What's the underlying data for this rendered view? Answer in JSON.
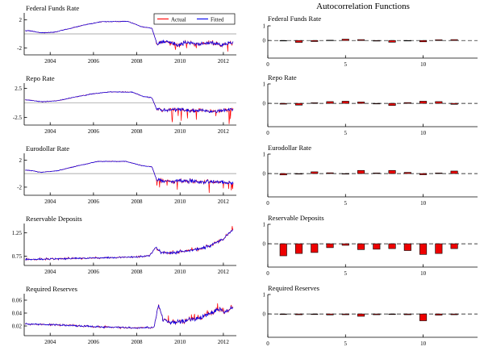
{
  "figure": {
    "right_title": "Autocorrelation Functions",
    "colors": {
      "actual": "#ff0000",
      "fitted": "#0000ee",
      "bar_fill": "#ee0000",
      "bar_edge": "#000000",
      "zero_line": "#909090"
    }
  },
  "chart_data": [
    {
      "id": "ts_ffr",
      "type": "line",
      "title": "Federal Funds Rate",
      "xlim": [
        2002.8,
        2012.6
      ],
      "xticks": [
        2004,
        2006,
        2008,
        2010,
        2012
      ],
      "ylim": [
        -3,
        3
      ],
      "yticks": [
        2,
        -2
      ],
      "zero_line": true,
      "legend": [
        {
          "label": "Actual",
          "color": "#ff0000"
        },
        {
          "label": "Fitted",
          "color": "#0000ee"
        }
      ],
      "series": [
        {
          "name": "Actual",
          "color": "#ff0000"
        },
        {
          "name": "Fitted",
          "color": "#0000ee"
        }
      ],
      "anchors": [
        [
          2003,
          0.45
        ],
        [
          2003.6,
          0.15
        ],
        [
          2004.2,
          0.25
        ],
        [
          2004.8,
          0.7
        ],
        [
          2005.6,
          1.3
        ],
        [
          2006.4,
          1.75
        ],
        [
          2007.6,
          1.78
        ],
        [
          2008.2,
          1.05
        ],
        [
          2008.7,
          0.8
        ],
        [
          2008.92,
          -1.3
        ],
        [
          2009.4,
          -1.1
        ],
        [
          2009.9,
          -1.5
        ],
        [
          2010.4,
          -1.2
        ],
        [
          2010.9,
          -1.5
        ],
        [
          2011.4,
          -1.3
        ],
        [
          2011.9,
          -1.6
        ],
        [
          2012.45,
          -1.2
        ]
      ],
      "noise": {
        "pre": 0.04,
        "post": 0.28,
        "switch": 2008.9
      },
      "spikes": {
        "prob": 0.04,
        "mag": 1.0,
        "dir": -1
      }
    },
    {
      "id": "ts_repo",
      "type": "line",
      "title": "Repo Rate",
      "xlim": [
        2002.8,
        2012.6
      ],
      "xticks": [
        2004,
        2006,
        2008,
        2010,
        2012
      ],
      "ylim": [
        -3.8,
        3.4
      ],
      "yticks": [
        2.5,
        -2.5
      ],
      "zero_line": true,
      "legend": null,
      "series": [
        {
          "name": "Actual",
          "color": "#ff0000"
        },
        {
          "name": "Fitted",
          "color": "#0000ee"
        }
      ],
      "anchors": [
        [
          2003,
          0.5
        ],
        [
          2003.6,
          0.2
        ],
        [
          2004.3,
          0.35
        ],
        [
          2005,
          0.9
        ],
        [
          2006,
          1.6
        ],
        [
          2006.8,
          1.9
        ],
        [
          2007.8,
          1.85
        ],
        [
          2008.3,
          1.1
        ],
        [
          2008.7,
          0.9
        ],
        [
          2008.92,
          -1.1
        ],
        [
          2009.4,
          -1.3
        ],
        [
          2010,
          -1.1
        ],
        [
          2010.5,
          -1.4
        ],
        [
          2011,
          -1.2
        ],
        [
          2011.5,
          -1.5
        ],
        [
          2012,
          -1.2
        ],
        [
          2012.45,
          -1.0
        ]
      ],
      "noise": {
        "pre": 0.05,
        "post": 0.32,
        "switch": 2008.9
      },
      "spikes": {
        "prob": 0.06,
        "mag": 2.2,
        "dir": -1
      }
    },
    {
      "id": "ts_euro",
      "type": "line",
      "title": "Eurodollar Rate",
      "xlim": [
        2002.8,
        2012.6
      ],
      "xticks": [
        2004,
        2006,
        2008,
        2010,
        2012
      ],
      "ylim": [
        -3.2,
        3
      ],
      "yticks": [
        2,
        -2
      ],
      "zero_line": true,
      "legend": null,
      "series": [
        {
          "name": "Actual",
          "color": "#ff0000"
        },
        {
          "name": "Fitted",
          "color": "#0000ee"
        }
      ],
      "anchors": [
        [
          2003,
          0.5
        ],
        [
          2003.6,
          0.2
        ],
        [
          2004.3,
          0.4
        ],
        [
          2005.2,
          1.1
        ],
        [
          2006.2,
          1.8
        ],
        [
          2007.5,
          1.8
        ],
        [
          2008.2,
          1.2
        ],
        [
          2008.7,
          1.0
        ],
        [
          2008.92,
          -0.9
        ],
        [
          2009.5,
          -1.2
        ],
        [
          2010.2,
          -1.0
        ],
        [
          2011,
          -1.3
        ],
        [
          2011.6,
          -1.1
        ],
        [
          2012.45,
          -1.4
        ]
      ],
      "noise": {
        "pre": 0.04,
        "post": 0.28,
        "switch": 2008.9
      },
      "spikes": {
        "prob": 0.05,
        "mag": 1.6,
        "dir": -1
      }
    },
    {
      "id": "ts_dep",
      "type": "line",
      "title": "Reservable Deposits",
      "xlim": [
        2002.8,
        2012.6
      ],
      "xticks": [
        2004,
        2006,
        2008,
        2010,
        2012
      ],
      "ylim": [
        0.55,
        1.45
      ],
      "yticks": [
        1.25,
        0.75
      ],
      "zero_line": false,
      "legend": null,
      "series": [
        {
          "name": "Actual",
          "color": "#ff0000"
        },
        {
          "name": "Fitted",
          "color": "#0000ee"
        }
      ],
      "anchors": [
        [
          2003,
          0.68
        ],
        [
          2004,
          0.69
        ],
        [
          2005,
          0.7
        ],
        [
          2006,
          0.71
        ],
        [
          2007,
          0.72
        ],
        [
          2008,
          0.73
        ],
        [
          2008.6,
          0.76
        ],
        [
          2008.88,
          0.95
        ],
        [
          2009.1,
          0.83
        ],
        [
          2009.6,
          0.82
        ],
        [
          2010,
          0.85
        ],
        [
          2010.6,
          0.88
        ],
        [
          2011,
          0.92
        ],
        [
          2011.5,
          1.0
        ],
        [
          2012,
          1.12
        ],
        [
          2012.45,
          1.32
        ]
      ],
      "noise": {
        "pre": 0.016,
        "post": 0.03,
        "switch": 2008.85
      },
      "spikes": {
        "prob": 0.03,
        "mag": 0.12,
        "dir": 1
      }
    },
    {
      "id": "ts_req",
      "type": "line",
      "title": "Required Reserves",
      "xlim": [
        2002.8,
        2012.6
      ],
      "xticks": [
        2004,
        2006,
        2008,
        2010,
        2012
      ],
      "ylim": [
        0.005,
        0.07
      ],
      "yticks": [
        0.06,
        0.04,
        0.02
      ],
      "zero_line": false,
      "legend": null,
      "series": [
        {
          "name": "Actual",
          "color": "#ff0000"
        },
        {
          "name": "Fitted",
          "color": "#0000ee"
        }
      ],
      "anchors": [
        [
          2003,
          0.023
        ],
        [
          2004,
          0.022
        ],
        [
          2005,
          0.021
        ],
        [
          2006,
          0.019
        ],
        [
          2007,
          0.018
        ],
        [
          2008,
          0.017
        ],
        [
          2008.8,
          0.018
        ],
        [
          2009,
          0.053
        ],
        [
          2009.2,
          0.03
        ],
        [
          2009.6,
          0.026
        ],
        [
          2010,
          0.027
        ],
        [
          2010.5,
          0.03
        ],
        [
          2011,
          0.033
        ],
        [
          2011.4,
          0.04
        ],
        [
          2011.8,
          0.046
        ],
        [
          2012.1,
          0.042
        ],
        [
          2012.45,
          0.05
        ]
      ],
      "noise": {
        "pre": 0.0012,
        "post": 0.003,
        "switch": 2008.9
      },
      "spikes": {
        "prob": 0.04,
        "mag": 0.008,
        "dir": 1
      }
    },
    {
      "id": "acf_ffr",
      "type": "bar",
      "title": "Federal Funds Rate",
      "xlim": [
        0,
        13.5
      ],
      "xticks": [
        0,
        5,
        10
      ],
      "ylim": [
        -1.2,
        1
      ],
      "yticks": [
        1,
        0
      ],
      "zero_line_dashed": true,
      "lags": [
        1,
        2,
        3,
        4,
        5,
        6,
        7,
        8,
        9,
        10,
        11,
        12
      ],
      "values": [
        -0.03,
        -0.13,
        -0.07,
        0.02,
        0.09,
        0.06,
        -0.04,
        -0.12,
        -0.03,
        -0.09,
        0.05,
        0.06
      ]
    },
    {
      "id": "acf_repo",
      "type": "bar",
      "title": "Repo Rate",
      "xlim": [
        0,
        13.5
      ],
      "xticks": [
        0,
        5,
        10
      ],
      "ylim": [
        -1.2,
        1
      ],
      "yticks": [
        1,
        0
      ],
      "zero_line_dashed": true,
      "lags": [
        1,
        2,
        3,
        4,
        5,
        6,
        7,
        8,
        9,
        10,
        11,
        12
      ],
      "values": [
        -0.04,
        -0.09,
        0.03,
        0.09,
        0.11,
        0.07,
        -0.03,
        -0.11,
        0.04,
        0.11,
        0.09,
        -0.05
      ]
    },
    {
      "id": "acf_euro",
      "type": "bar",
      "title": "Eurodollar Rate",
      "xlim": [
        0,
        13.5
      ],
      "xticks": [
        0,
        5,
        10
      ],
      "ylim": [
        -1.2,
        1
      ],
      "yticks": [
        1,
        0
      ],
      "zero_line_dashed": true,
      "lags": [
        1,
        2,
        3,
        4,
        5,
        6,
        7,
        8,
        9,
        10,
        11,
        12
      ],
      "values": [
        -0.07,
        -0.03,
        0.09,
        0.04,
        -0.03,
        0.16,
        0.03,
        0.16,
        0.06,
        -0.06,
        0.03,
        0.13
      ]
    },
    {
      "id": "acf_dep",
      "type": "bar",
      "title": "Reservable Deposits",
      "xlim": [
        0,
        13.5
      ],
      "xticks": [
        0,
        5,
        10
      ],
      "ylim": [
        -1.2,
        1
      ],
      "yticks": [
        1,
        0
      ],
      "zero_line_dashed": true,
      "lags": [
        1,
        2,
        3,
        4,
        5,
        6,
        7,
        8,
        9,
        10,
        11,
        12
      ],
      "values": [
        -0.62,
        -0.5,
        -0.45,
        -0.2,
        -0.08,
        -0.3,
        -0.28,
        -0.25,
        -0.35,
        -0.55,
        -0.5,
        -0.25
      ]
    },
    {
      "id": "acf_req",
      "type": "bar",
      "title": "Required Reserves",
      "xlim": [
        0,
        13.5
      ],
      "xticks": [
        0,
        5,
        10
      ],
      "ylim": [
        -1.2,
        1
      ],
      "yticks": [
        1,
        0
      ],
      "zero_line_dashed": true,
      "lags": [
        1,
        2,
        3,
        4,
        5,
        6,
        7,
        8,
        9,
        10,
        11,
        12
      ],
      "values": [
        -0.03,
        -0.04,
        -0.03,
        -0.05,
        -0.04,
        -0.12,
        -0.04,
        -0.03,
        -0.04,
        -0.35,
        -0.06,
        -0.04
      ]
    }
  ]
}
